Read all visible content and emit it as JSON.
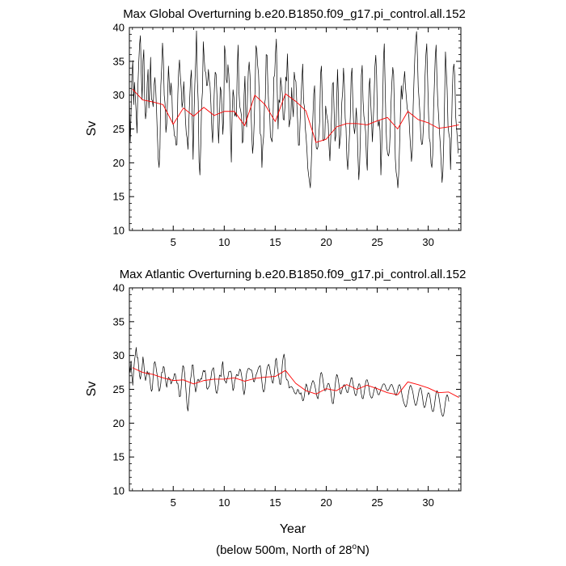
{
  "caption": {
    "prefix": "(below 500m, North of 28",
    "degree": "o",
    "suffix": "N)"
  },
  "xlabel_shared": "Year",
  "chart_data": [
    {
      "type": "line",
      "title": "Max Global Overturning b.e20.B1850.f09_g17.pi_control.all.152",
      "ylabel": "Sv",
      "xlabel": "",
      "xlim": [
        0.7,
        33.2
      ],
      "ylim": [
        10,
        40
      ],
      "xticks": [
        5,
        10,
        15,
        20,
        25,
        30
      ],
      "yticks": [
        10,
        15,
        20,
        25,
        30,
        35,
        40
      ],
      "series": [
        {
          "name": "monthly",
          "color": "#000000",
          "x_start": 0.7,
          "x_step": 0.0833,
          "values": [
            30.2,
            23.1,
            27.4,
            33.0,
            35.1,
            28.6,
            31.9,
            29.7,
            27.4,
            24.4,
            31.2,
            34.6,
            37.5,
            38.8,
            33.2,
            29.3,
            35.0,
            36.7,
            29.2,
            26.5,
            27.5,
            31.8,
            33.8,
            28.1,
            31.1,
            35.6,
            29.4,
            29.2,
            28.3,
            31.4,
            32.6,
            30.9,
            27.7,
            24.0,
            20.5,
            19.3,
            22.2,
            31.4,
            33.9,
            37.7,
            35.4,
            30.0,
            28.7,
            24.5,
            25.8,
            29.8,
            34.3,
            31.8,
            30.0,
            31.8,
            30.4,
            25.8,
            25.5,
            24.0,
            23.9,
            22.6,
            22.7,
            30.0,
            33.6,
            35.2,
            32.8,
            31.0,
            28.2,
            29.0,
            32.0,
            29.6,
            26.3,
            24.3,
            23.6,
            22.0,
            26.1,
            29.5,
            32.3,
            33.7,
            26.6,
            20.5,
            26.8,
            31.5,
            34.9,
            39.5,
            32.2,
            29.1,
            20.1,
            18.2,
            22.4,
            28.6,
            30.5,
            37.9,
            35.5,
            33.6,
            33.3,
            31.4,
            31.5,
            33.8,
            32.3,
            31.3,
            28.6,
            25.0,
            23.0,
            26.8,
            30.8,
            33.4,
            33.1,
            30.2,
            26.5,
            22.9,
            26.4,
            31.2,
            30.6,
            28.1,
            24.2,
            26.6,
            37.3,
            36.2,
            32.3,
            31.8,
            34.5,
            33.1,
            30.4,
            24.8,
            20.1,
            27.6,
            30.8,
            29.7,
            26.9,
            27.4,
            26.8,
            34.2,
            37.4,
            30.4,
            28.3,
            27.7,
            26.9,
            22.9,
            23.3,
            30.0,
            32.8,
            27.0,
            25.3,
            29.8,
            33.5,
            34.9,
            32.9,
            28.4,
            24.4,
            21.4,
            22.9,
            26.3,
            31.4,
            37.3,
            36.7,
            34.4,
            33.2,
            29.7,
            24.3,
            24.0,
            19.3,
            22.5,
            23.9,
            28.6,
            29.4,
            36.0,
            35.9,
            31.5,
            28.3,
            27.9,
            23.8,
            23.5,
            23.1,
            26.1,
            32.6,
            33.0,
            36.3,
            38.3,
            30.7,
            25.0,
            29.3,
            28.9,
            32.6,
            31.4,
            30.2,
            26.5,
            26.3,
            28.1,
            32.7,
            32.1,
            36.1,
            31.8,
            25.3,
            26.1,
            26.7,
            31.1,
            28.4,
            26.8,
            33.4,
            32.3,
            32.0,
            29.0,
            26.2,
            22.6,
            22.6,
            26.3,
            29.4,
            32.3,
            34.6,
            29.0,
            28.3,
            25.2,
            23.8,
            21.8,
            19.2,
            18.1,
            17.2,
            16.3,
            19.6,
            23.5,
            26.8,
            30.2,
            31.4,
            24.1,
            22.2,
            22.0,
            22.4,
            24.2,
            26.2,
            33.1,
            34.3,
            29.6,
            23.3,
            23.3,
            23.7,
            28.4,
            27.3,
            26.5,
            25.8,
            22.4,
            20.3,
            23.6,
            27.2,
            31.6,
            31.9,
            27.4,
            23.2,
            24.0,
            29.2,
            33.8,
            29.6,
            22.1,
            23.2,
            24.6,
            28.9,
            30.5,
            34.0,
            31.6,
            26.6,
            25.1,
            20.6,
            19.0,
            21.3,
            24.0,
            26.8,
            32.8,
            34.0,
            28.9,
            25.5,
            24.3,
            25.6,
            28.1,
            25.7,
            21.0,
            17.5,
            19.7,
            24.4,
            32.9,
            34.4,
            29.2,
            26.9,
            26.0,
            24.6,
            20.7,
            18.9,
            25.2,
            31.2,
            32.5,
            29.1,
            26.3,
            23.1,
            26.2,
            29.6,
            34.2,
            35.9,
            32.9,
            26.2,
            25.4,
            26.3,
            24.7,
            18.2,
            22.2,
            28.0,
            35.2,
            37.6,
            31.6,
            25.5,
            22.3,
            21.3,
            21.0,
            21.7,
            24.6,
            29.0,
            32.0,
            34.1,
            33.1,
            27.2,
            20.6,
            18.6,
            17.8,
            16.3,
            18.4,
            22.5,
            27.2,
            31.4,
            29.4,
            31.0,
            32.1,
            33.5,
            31.2,
            29.6,
            28.0,
            27.6,
            26.8,
            24.3,
            22.2,
            20.2,
            21.9,
            28.3,
            32.3,
            35.8,
            38.1,
            39.4,
            35.7,
            31.1,
            29.3,
            27.1,
            23.8,
            22.7,
            22.8,
            25.1,
            27.2,
            32.9,
            36.0,
            37.6,
            32.5,
            27.7,
            23.6,
            23.0,
            19.9,
            19.3,
            21.2,
            27.9,
            31.7,
            35.7,
            37.4,
            32.4,
            28.9,
            26.8,
            24.5,
            22.6,
            19.8,
            17.1,
            18.7,
            23.0,
            29.4,
            36.4,
            33.6,
            30.8,
            25.5,
            24.3,
            23.6,
            19.0,
            23.9,
            30.3,
            33.8,
            34.6,
            32.7,
            26.9,
            25.3,
            23.6,
            21.4
          ]
        },
        {
          "name": "annual mean",
          "color": "#ff0000",
          "x": [
            1,
            2,
            3,
            4,
            5,
            6,
            7,
            8,
            9,
            10,
            11,
            12,
            13,
            14,
            15,
            16,
            17,
            18,
            19,
            20,
            21,
            22,
            23,
            24,
            25,
            26,
            27,
            28,
            29,
            30,
            31,
            32,
            33
          ],
          "values": [
            30.9,
            29.3,
            29.0,
            28.6,
            25.7,
            28.1,
            26.9,
            28.2,
            27.0,
            27.6,
            27.6,
            25.5,
            30.0,
            28.6,
            26.1,
            30.2,
            29.1,
            27.7,
            23.0,
            23.5,
            25.3,
            25.8,
            25.8,
            25.6,
            26.2,
            26.7,
            25.0,
            27.6,
            26.4,
            25.9,
            25.1,
            25.3,
            25.6
          ]
        }
      ]
    },
    {
      "type": "line",
      "title": "Max Atlantic Overturning b.e20.B1850.f09_g17.pi_control.all.152",
      "ylabel": "Sv",
      "xlabel": "Year",
      "xlim": [
        0.7,
        33.2
      ],
      "ylim": [
        10,
        40
      ],
      "xticks": [
        5,
        10,
        15,
        20,
        25,
        30
      ],
      "yticks": [
        10,
        15,
        20,
        25,
        30,
        35,
        40
      ],
      "series": [
        {
          "name": "monthly",
          "color": "#000000",
          "x_start": 0.7,
          "x_step": 0.0833,
          "values": [
            28.7,
            27.5,
            29.2,
            26.9,
            25.6,
            27.6,
            29.2,
            30.1,
            31.2,
            29.7,
            29.7,
            28.2,
            27.0,
            26.5,
            27.5,
            28.2,
            29.8,
            28.8,
            27.1,
            26.3,
            26.9,
            27.7,
            27.2,
            27.5,
            26.6,
            25.4,
            24.7,
            25.0,
            26.9,
            28.8,
            29.1,
            28.6,
            27.7,
            26.9,
            25.6,
            24.7,
            25.0,
            25.9,
            27.5,
            27.5,
            28.4,
            28.2,
            27.2,
            25.9,
            25.3,
            26.3,
            26.8,
            26.6,
            26.5,
            25.8,
            26.1,
            26.4,
            26.6,
            27.3,
            27.3,
            26.5,
            25.9,
            25.9,
            25.0,
            23.9,
            24.0,
            25.3,
            27.4,
            28.5,
            28.3,
            27.4,
            25.9,
            24.2,
            22.4,
            21.8,
            23.4,
            25.1,
            26.5,
            27.2,
            28.6,
            28.6,
            27.0,
            25.5,
            24.6,
            25.2,
            26.3,
            26.5,
            26.2,
            26.3,
            26.6,
            26.5,
            27.2,
            27.8,
            27.6,
            27.8,
            27.0,
            25.2,
            25.0,
            25.3,
            25.4,
            26.3,
            26.7,
            27.7,
            28.0,
            28.2,
            27.2,
            25.6,
            24.6,
            24.4,
            25.0,
            25.9,
            27.1,
            27.0,
            26.9,
            28.5,
            29.1,
            27.3,
            26.3,
            26.2,
            25.9,
            26.6,
            26.8,
            27.6,
            27.6,
            27.7,
            27.4,
            25.8,
            24.8,
            25.2,
            26.3,
            26.6,
            27.2,
            27.1,
            27.0,
            27.5,
            28.0,
            27.8,
            27.1,
            26.3,
            24.9,
            24.2,
            24.9,
            26.4,
            27.4,
            27.8,
            28.1,
            28.1,
            27.9,
            27.9,
            27.8,
            27.2,
            26.2,
            26.1,
            26.6,
            27.1,
            27.4,
            27.8,
            28.2,
            28.4,
            28.5,
            27.4,
            26.1,
            25.0,
            24.6,
            24.9,
            26.0,
            27.2,
            28.1,
            28.5,
            28.7,
            28.3,
            27.5,
            26.9,
            26.1,
            25.9,
            26.7,
            27.9,
            29.3,
            29.6,
            28.3,
            27.5,
            26.7,
            25.8,
            25.7,
            26.8,
            28.7,
            29.7,
            30.2,
            29.4,
            27.0,
            26.4,
            26.4,
            26.1,
            25.2,
            25.3,
            25.4,
            25.4,
            25.2,
            25.0,
            24.6,
            24.4,
            24.3,
            24.6,
            25.0,
            24.9,
            24.4,
            24.3,
            24.5,
            23.9,
            23.3,
            23.4,
            24.1,
            25.1,
            25.8,
            25.5,
            24.9,
            24.2,
            24.5,
            25.0,
            25.5,
            26.0,
            26.3,
            26.1,
            25.7,
            25.1,
            24.4,
            23.8,
            23.6,
            24.5,
            26.1,
            27.3,
            27.5,
            27.1,
            26.2,
            25.3,
            24.8,
            24.8,
            25.2,
            25.6,
            25.9,
            25.8,
            25.3,
            24.7,
            23.7,
            22.9,
            22.9,
            24.0,
            25.4,
            26.5,
            27.2,
            27.0,
            26.3,
            25.4,
            24.5,
            24.3,
            24.8,
            25.3,
            25.6,
            25.7,
            25.5,
            25.0,
            24.6,
            24.5,
            25.0,
            25.5,
            26.1,
            26.7,
            26.7,
            26.0,
            25.3,
            24.5,
            24.1,
            24.1,
            24.7,
            25.3,
            25.8,
            25.8,
            25.2,
            24.3,
            23.7,
            23.6,
            24.2,
            25.1,
            26.0,
            26.4,
            26.4,
            25.9,
            25.2,
            24.3,
            23.9,
            23.7,
            23.8,
            24.3,
            24.9,
            25.3,
            25.3,
            24.9,
            24.5,
            24.2,
            24.2,
            24.6,
            25.0,
            25.3,
            25.6,
            25.8,
            25.8,
            25.6,
            25.2,
            24.9,
            24.8,
            24.9,
            25.2,
            25.5,
            25.7,
            25.7,
            25.4,
            25.0,
            24.6,
            24.2,
            24.1,
            24.5,
            25.1,
            25.6,
            25.7,
            25.4,
            24.8,
            24.1,
            23.5,
            23.0,
            22.7,
            22.4,
            22.5,
            23.2,
            24.0,
            24.8,
            25.4,
            25.6,
            25.3,
            24.9,
            24.3,
            23.5,
            22.9,
            22.6,
            22.8,
            23.4,
            24.1,
            24.8,
            25.2,
            25.2,
            24.6,
            23.8,
            22.8,
            22.3,
            22.4,
            23.0,
            23.7,
            24.3,
            24.5,
            24.3,
            23.7,
            22.8,
            22.0,
            21.7,
            21.8,
            22.6,
            23.6,
            24.5,
            24.8,
            24.6,
            24.1,
            23.3,
            22.4,
            21.7,
            21.2,
            21.0,
            21.3,
            22.2,
            23.2,
            23.9,
            24.2,
            23.9,
            23.2
          ]
        },
        {
          "name": "annual mean",
          "color": "#ff0000",
          "x": [
            1,
            2,
            3,
            4,
            5,
            6,
            7,
            8,
            9,
            10,
            11,
            12,
            13,
            14,
            15,
            16,
            17,
            18,
            19,
            20,
            21,
            22,
            23,
            24,
            25,
            26,
            27,
            28,
            29,
            30,
            31,
            32,
            33
          ],
          "values": [
            28.2,
            27.5,
            27.2,
            26.7,
            26.3,
            26.4,
            25.8,
            26.3,
            26.5,
            26.5,
            26.7,
            26.2,
            26.6,
            26.8,
            26.9,
            27.8,
            25.9,
            24.8,
            24.3,
            25.1,
            24.8,
            25.7,
            25.0,
            25.6,
            25.1,
            24.5,
            24.2,
            26.1,
            25.7,
            25.2,
            24.5,
            24.6,
            23.8
          ]
        }
      ]
    }
  ]
}
